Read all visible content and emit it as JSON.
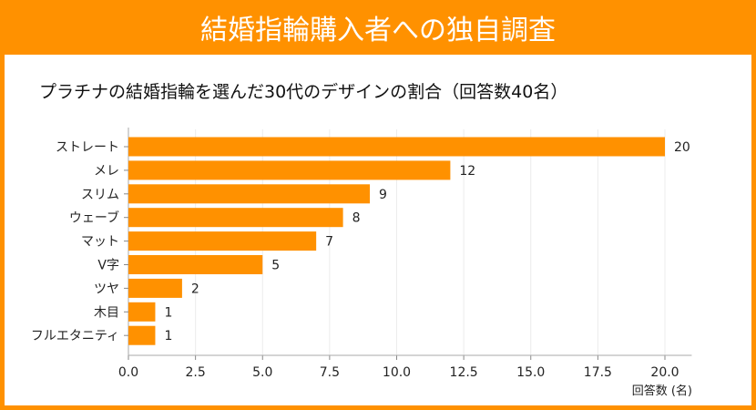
{
  "header": {
    "title": "結婚指輪購入者への独自調査"
  },
  "chart_data": {
    "type": "bar",
    "orientation": "horizontal",
    "title": "プラチナの結婚指輪を選んだ30代のデザインの割合（回答数40名）",
    "xlabel": "回答数 (名)",
    "ylabel": "",
    "categories": [
      "ストレート",
      "メレ",
      "スリム",
      "ウェーブ",
      "マット",
      "V字",
      "ツヤ",
      "木目",
      "フルエタニティ"
    ],
    "values": [
      20,
      12,
      9,
      8,
      7,
      5,
      2,
      1,
      1
    ],
    "xlim": [
      0,
      21
    ],
    "xticks": [
      "0.0",
      "2.5",
      "5.0",
      "7.5",
      "10.0",
      "12.5",
      "15.0",
      "17.5",
      "20.0"
    ],
    "grid": "vertical",
    "data_labels": true,
    "bar_color": "#FF9100",
    "accent_color": "#FF9100"
  }
}
